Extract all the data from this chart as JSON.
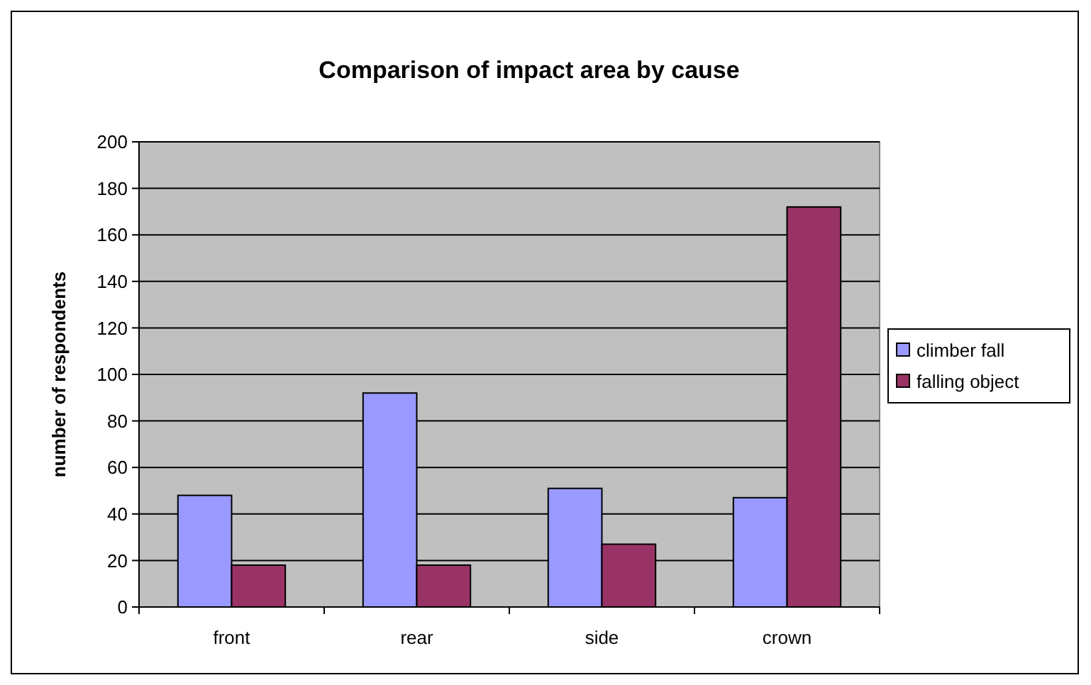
{
  "chart_data": {
    "type": "bar",
    "title": "Comparison of impact area by cause",
    "ylabel": "number of respondents",
    "categories": [
      "front",
      "rear",
      "side",
      "crown"
    ],
    "series": [
      {
        "name": "climber fall",
        "color": "#9999ff",
        "values": [
          48,
          92,
          51,
          47
        ]
      },
      {
        "name": "falling object",
        "color": "#993366",
        "values": [
          18,
          18,
          27,
          172
        ]
      }
    ],
    "ylim": [
      0,
      200
    ],
    "yticks": [
      0,
      20,
      40,
      60,
      80,
      100,
      120,
      140,
      160,
      180,
      200
    ],
    "grid": "y",
    "legend": "right"
  }
}
